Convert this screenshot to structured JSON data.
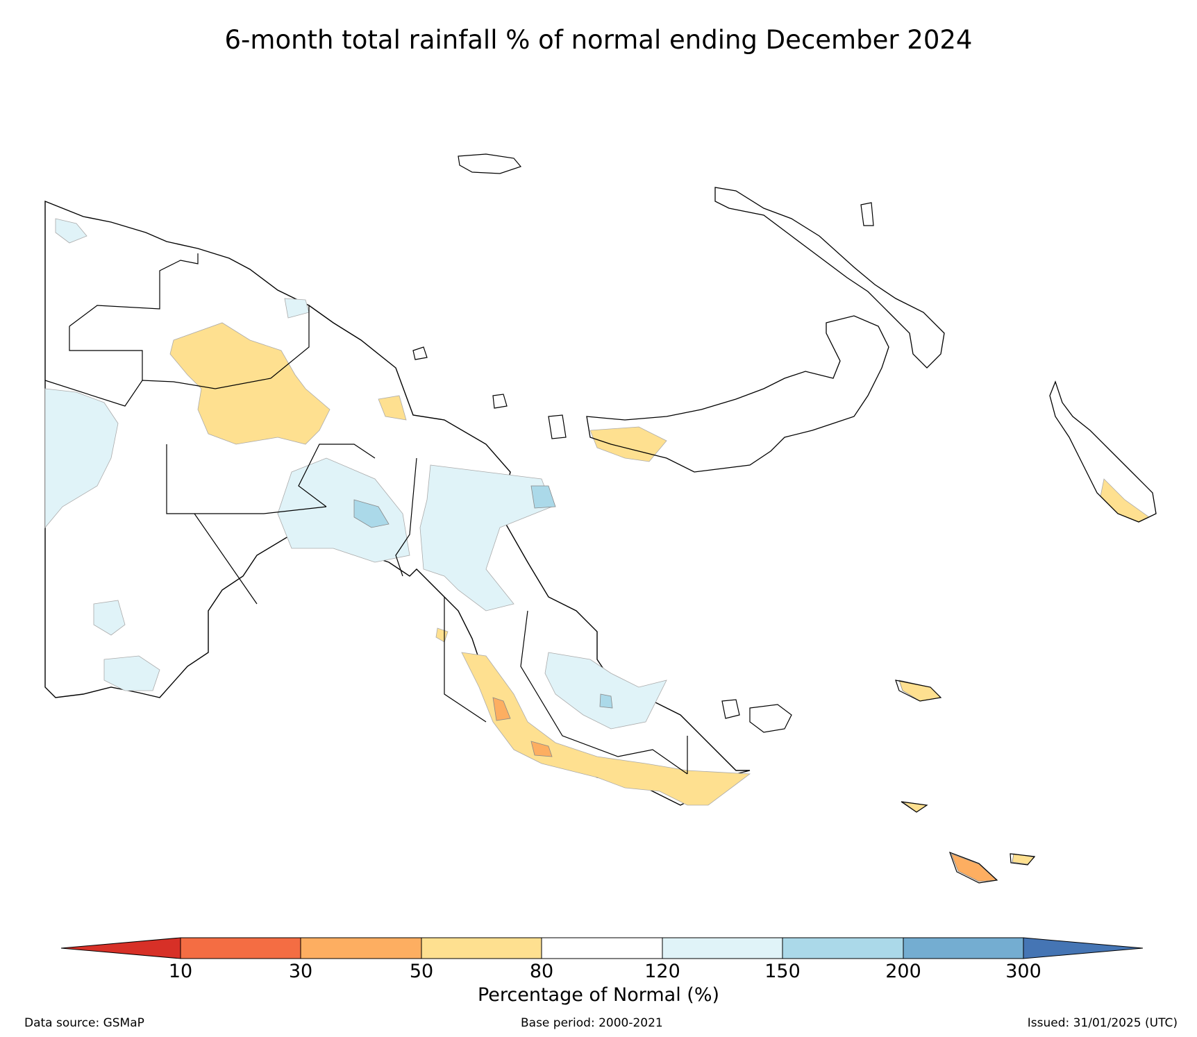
{
  "title": "6-month total rainfall % of normal ending December 2024",
  "colorbar": {
    "label": "Percentage of Normal (%)",
    "ticks": [
      "10",
      "30",
      "50",
      "80",
      "120",
      "150",
      "200",
      "300"
    ],
    "bins": [
      {
        "range": "<10",
        "color": "#d73027"
      },
      {
        "range": "10-30",
        "color": "#f46d43"
      },
      {
        "range": "30-50",
        "color": "#fdae61"
      },
      {
        "range": "50-80",
        "color": "#fee090"
      },
      {
        "range": "80-120",
        "color": "#ffffff"
      },
      {
        "range": "120-150",
        "color": "#e0f3f8"
      },
      {
        "range": "150-200",
        "color": "#abd9e9"
      },
      {
        "range": "200-300",
        "color": "#74add1"
      },
      {
        "range": ">300",
        "color": "#4575b4"
      }
    ]
  },
  "footer": {
    "source": "Data source: GSMaP",
    "base_period": "Base period: 2000-2021",
    "issued": "Issued: 31/01/2025 (UTC)"
  },
  "map": {
    "region": "Papua New Guinea",
    "colors": {
      "dry": "#fee090",
      "very_dry": "#fdae61",
      "wet": "#e0f3f8",
      "very_wet": "#abd9e9"
    }
  }
}
